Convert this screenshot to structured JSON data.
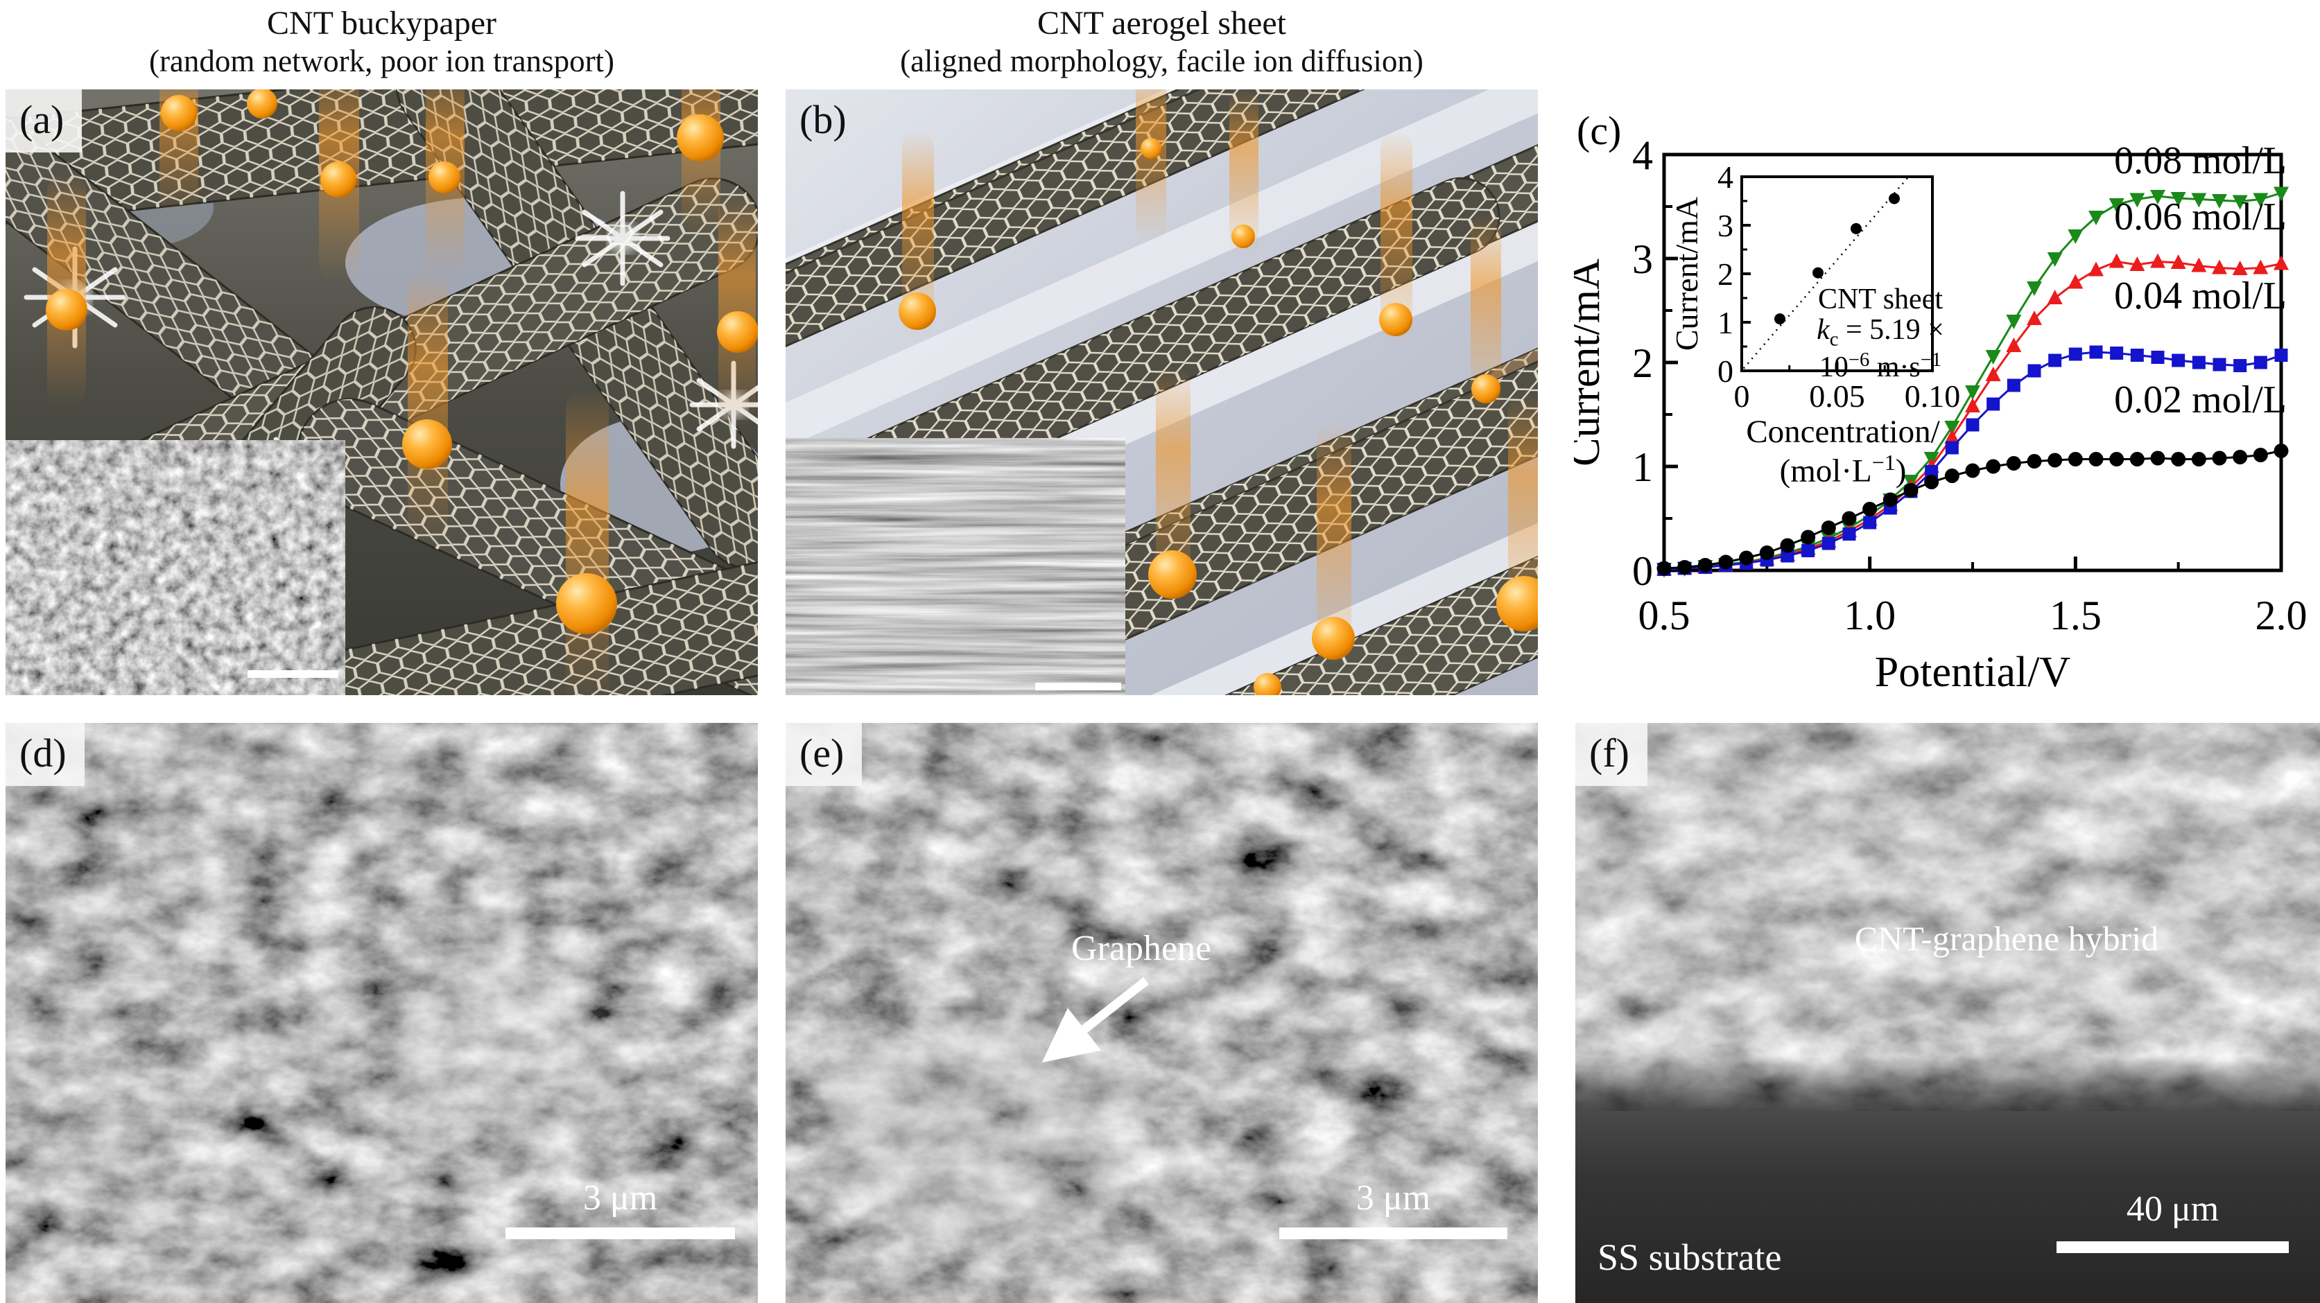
{
  "titles": {
    "a_line1": "CNT buckypaper",
    "a_line2": "(random network, poor ion transport)",
    "b_line1": "CNT aerogel sheet",
    "b_line2": "(aligned morphology, facile ion diffusion)"
  },
  "panels": {
    "a": {
      "label": "(a)"
    },
    "b": {
      "label": "(b)"
    },
    "c": {
      "label": "(c)"
    },
    "d": {
      "label": "(d)",
      "scale_bar_text": "3 μm"
    },
    "e": {
      "label": "(e)",
      "scale_bar_text": "3 μm",
      "annotation": "Graphene"
    },
    "f": {
      "label": "(f)",
      "scale_bar_text": "40 μm",
      "layer_label": "CNT-graphene hybrid",
      "substrate_label": "SS substrate"
    }
  },
  "illustration": {
    "ion_color": "#f59f1e"
  },
  "chart_data": {
    "type": "line",
    "title": "",
    "xlabel": "Potential/V",
    "ylabel": "Current/mA",
    "xlim": [
      0.5,
      2.0
    ],
    "ylim": [
      0,
      4
    ],
    "grid": false,
    "legend_position": "right-inside-above-curves",
    "xticks": [
      "0.5",
      "1.0",
      "1.5",
      "2.0"
    ],
    "xtick_values": [
      0.5,
      1.0,
      1.5,
      2.0
    ],
    "yticks": [
      "0",
      "1",
      "2",
      "3",
      "4"
    ],
    "ytick_values": [
      0,
      1,
      2,
      3,
      4
    ],
    "x": [
      0.5,
      0.55,
      0.6,
      0.65,
      0.7,
      0.75,
      0.8,
      0.85,
      0.9,
      0.95,
      1.0,
      1.05,
      1.1,
      1.15,
      1.2,
      1.25,
      1.3,
      1.35,
      1.4,
      1.45,
      1.5,
      1.55,
      1.6,
      1.65,
      1.7,
      1.75,
      1.8,
      1.85,
      1.9,
      1.95,
      2.0
    ],
    "series": [
      {
        "name": "0.08 mol/L",
        "color": "#1a8a1a",
        "marker": "triangle-down",
        "label_y": 3.82,
        "values": [
          0.01,
          0.02,
          0.04,
          0.06,
          0.08,
          0.12,
          0.17,
          0.23,
          0.31,
          0.41,
          0.53,
          0.68,
          0.86,
          1.08,
          1.38,
          1.72,
          2.06,
          2.4,
          2.72,
          3.0,
          3.22,
          3.4,
          3.52,
          3.57,
          3.6,
          3.58,
          3.57,
          3.56,
          3.55,
          3.57,
          3.63
        ]
      },
      {
        "name": "0.06 mol/L",
        "color": "#ec1c1c",
        "marker": "triangle-up",
        "label_y": 3.28,
        "values": [
          0.01,
          0.02,
          0.03,
          0.05,
          0.07,
          0.11,
          0.15,
          0.21,
          0.28,
          0.38,
          0.49,
          0.63,
          0.8,
          1.0,
          1.28,
          1.58,
          1.88,
          2.16,
          2.42,
          2.62,
          2.77,
          2.89,
          2.97,
          2.94,
          2.97,
          2.96,
          2.93,
          2.91,
          2.9,
          2.91,
          2.95
        ]
      },
      {
        "name": "0.04 mol/L",
        "color": "#1414cc",
        "marker": "square",
        "label_y": 2.52,
        "values": [
          0.01,
          0.02,
          0.03,
          0.05,
          0.07,
          0.1,
          0.14,
          0.19,
          0.26,
          0.35,
          0.46,
          0.6,
          0.76,
          0.95,
          1.18,
          1.4,
          1.6,
          1.78,
          1.92,
          2.02,
          2.08,
          2.1,
          2.09,
          2.07,
          2.05,
          2.02,
          2.0,
          1.98,
          1.97,
          2.0,
          2.07
        ]
      },
      {
        "name": "0.02 mol/L",
        "color": "#000000",
        "marker": "circle",
        "label_y": 1.52,
        "values": [
          0.02,
          0.03,
          0.05,
          0.08,
          0.12,
          0.17,
          0.24,
          0.32,
          0.41,
          0.5,
          0.59,
          0.68,
          0.77,
          0.85,
          0.91,
          0.96,
          1.0,
          1.03,
          1.05,
          1.06,
          1.07,
          1.07,
          1.07,
          1.07,
          1.08,
          1.07,
          1.07,
          1.08,
          1.09,
          1.11,
          1.15
        ]
      }
    ],
    "inset": {
      "type": "scatter-with-fit",
      "ylabel": "Current/mA",
      "xlabel_line1": "Concentration/",
      "xlabel_line2_open": "(mol·L",
      "xlabel_line2_sup": "−1",
      "xlabel_line2_close": ")",
      "xlim": [
        0,
        0.1
      ],
      "ylim": [
        0,
        4
      ],
      "xticks": [
        "0",
        "0.05",
        "0.10"
      ],
      "xtick_values": [
        0,
        0.05,
        0.1
      ],
      "yticks": [
        "0",
        "1",
        "2",
        "3",
        "4"
      ],
      "ytick_values": [
        0,
        1,
        2,
        3,
        4
      ],
      "points_x": [
        0.02,
        0.04,
        0.06,
        0.08
      ],
      "points_y": [
        1.07,
        2.02,
        2.93,
        3.55
      ],
      "fit_x": [
        0.001,
        0.0875
      ],
      "fit_y": [
        0.05,
        4.0
      ],
      "annotation_title": "CNT sheet",
      "k_italic": "k",
      "k_sub": "c",
      "k_eq": " = 5.19 ×",
      "exp_base": "10",
      "exp_sup": "−6",
      "unit_base": " m·s",
      "unit_sup": "−1"
    }
  }
}
